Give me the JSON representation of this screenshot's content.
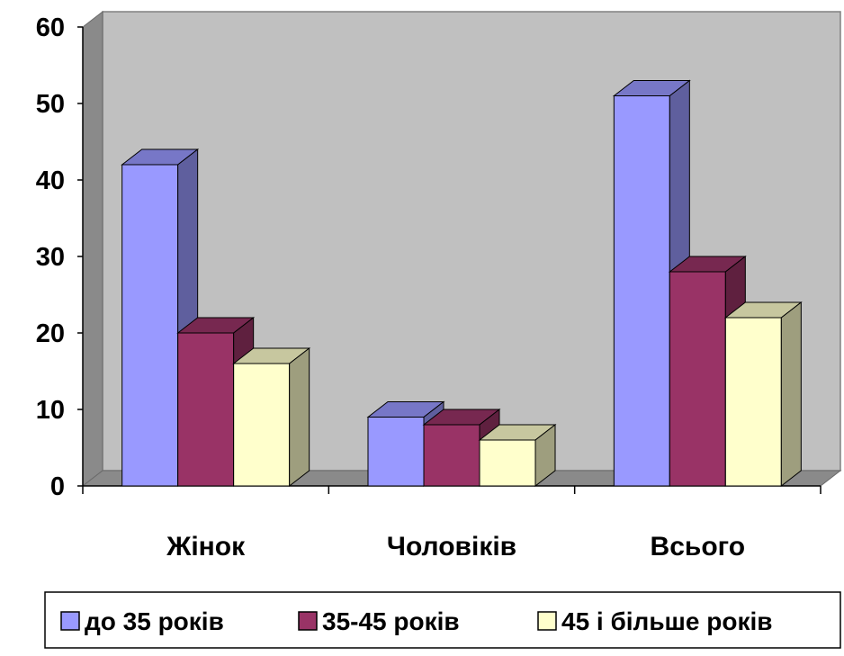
{
  "chart_data": {
    "type": "bar",
    "subtype": "3d-clustered-column",
    "categories": [
      "Жінок",
      "Чоловіків",
      "Всього"
    ],
    "series": [
      {
        "name": "до 35 років",
        "values": [
          42,
          9,
          51
        ],
        "color": "#9999ff"
      },
      {
        "name": "35-45 років",
        "values": [
          20,
          8,
          28
        ],
        "color": "#993366"
      },
      {
        "name": "45 і більше років",
        "values": [
          16,
          6,
          22
        ],
        "color": "#ffffcc"
      }
    ],
    "ylim": [
      0,
      60
    ],
    "yticks": [
      "0",
      "10",
      "20",
      "30",
      "40",
      "50",
      "60"
    ],
    "grid": false,
    "wall_color": "#c0c0c0",
    "legend_position": "bottom"
  }
}
